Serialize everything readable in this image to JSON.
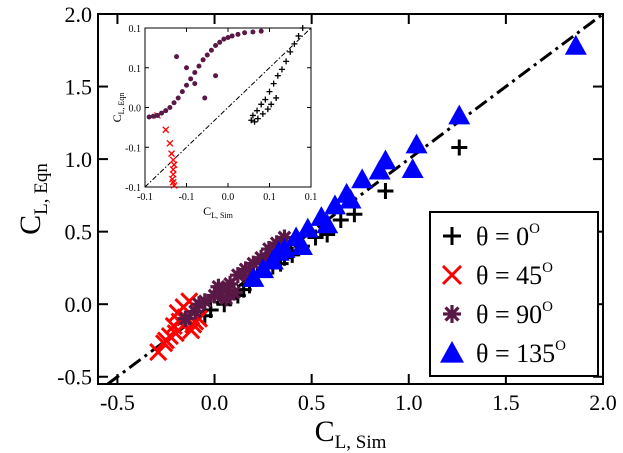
{
  "chart_data": [
    {
      "id": "main",
      "type": "scatter",
      "title": "",
      "xlabel": {
        "main": "C",
        "sub": "L, Sim"
      },
      "ylabel": {
        "main": "C",
        "sub": "L, Eqn"
      },
      "xlim": [
        -0.6,
        2.0
      ],
      "ylim": [
        -0.55,
        2.0
      ],
      "xticks": [
        -0.5,
        0.0,
        0.5,
        1.0,
        1.5,
        2.0
      ],
      "xtick_labels": [
        "-0.5",
        "0.0",
        "0.5",
        "1.0",
        "1.5",
        "2.0"
      ],
      "yticks": [
        -0.5,
        0.0,
        0.5,
        1.0,
        1.5,
        2.0
      ],
      "ytick_labels": [
        "-0.5",
        "0.0",
        "0.5",
        "1.0",
        "1.5",
        "2.0"
      ],
      "reference_line": {
        "style": "dash-dot",
        "x": [
          -0.55,
          2.0
        ],
        "y": [
          -0.55,
          2.0
        ]
      },
      "legend_position": "center-right",
      "series": [
        {
          "name": "θ = 0°",
          "legend_label": "θ = 0",
          "legend_sup": "O",
          "marker": "plus",
          "color": "#000000",
          "x": [
            1.26,
            0.88,
            0.58,
            0.72,
            0.45,
            0.3,
            0.15,
            0.05,
            -0.02,
            0.08,
            0.22,
            0.36,
            0.52,
            0.4,
            0.12,
            -0.05,
            0.18,
            0.65,
            0.34
          ],
          "y": [
            1.08,
            0.78,
            0.48,
            0.62,
            0.4,
            0.26,
            0.1,
            0.0,
            -0.04,
            0.04,
            0.2,
            0.32,
            0.46,
            0.34,
            0.06,
            -0.08,
            0.13,
            0.58,
            0.28
          ]
        },
        {
          "name": "θ = 45°",
          "legend_label": "θ = 45",
          "legend_sup": "O",
          "marker": "x",
          "color": "#ff0000",
          "x": [
            -0.29,
            -0.26,
            -0.23,
            -0.21,
            -0.18,
            -0.15,
            -0.12,
            -0.1,
            -0.2,
            -0.16,
            -0.13,
            -0.25,
            -0.08,
            -0.11,
            -0.19
          ],
          "y": [
            -0.33,
            -0.27,
            -0.22,
            -0.15,
            -0.12,
            -0.09,
            -0.18,
            -0.12,
            -0.2,
            -0.02,
            0.02,
            -0.25,
            -0.1,
            -0.14,
            -0.06
          ]
        },
        {
          "name": "θ = 90°",
          "legend_label": "θ = 90",
          "legend_sup": "O",
          "marker": "star",
          "color": "#5a1846",
          "x": [
            -0.15,
            -0.1,
            -0.05,
            0.0,
            0.04,
            0.08,
            0.12,
            0.16,
            0.2,
            0.24,
            0.28,
            0.32,
            0.36,
            -0.08,
            0.02,
            0.1,
            0.18,
            0.26,
            0.3,
            0.06
          ],
          "y": [
            -0.1,
            -0.05,
            0.02,
            0.06,
            0.1,
            0.14,
            0.2,
            0.24,
            0.28,
            0.32,
            0.38,
            0.42,
            0.46,
            0.0,
            0.12,
            0.08,
            0.18,
            0.3,
            0.34,
            0.04
          ]
        },
        {
          "name": "θ = 135°",
          "legend_label": "θ = 135",
          "legend_sup": "O",
          "marker": "triangle",
          "color": "#0000ff",
          "x": [
            1.86,
            1.26,
            1.04,
            1.02,
            0.88,
            0.85,
            0.76,
            0.68,
            0.62,
            0.55,
            0.48,
            0.42,
            0.36,
            0.3,
            0.25,
            0.2,
            0.45,
            0.58,
            0.7,
            0.33
          ],
          "y": [
            1.78,
            1.3,
            1.1,
            0.93,
            0.99,
            0.92,
            0.86,
            0.76,
            0.68,
            0.6,
            0.52,
            0.46,
            0.38,
            0.3,
            0.24,
            0.18,
            0.4,
            0.55,
            0.72,
            0.36
          ]
        }
      ]
    },
    {
      "id": "inset",
      "type": "scatter",
      "title": "",
      "xlabel": {
        "main": "C",
        "sub": "L, Sim"
      },
      "ylabel": {
        "main": "C",
        "sub": "L, Eqn"
      },
      "xlim": [
        -0.1,
        0.1
      ],
      "ylim": [
        -0.1,
        0.1
      ],
      "xtick_labels": [
        "-0.1",
        "-0.1",
        "0.0",
        "0.1",
        "0.1"
      ],
      "ytick_labels": [
        "0.1",
        "0.1",
        "0.0",
        "-0.1",
        "-0.1"
      ],
      "reference_line": {
        "style": "dash-dot"
      },
      "series": [
        {
          "name": "θ = 0°",
          "marker": "plus",
          "color": "#000000",
          "x": [
            0.085,
            0.08,
            0.075,
            0.07,
            0.065,
            0.06,
            0.055,
            0.05,
            0.045,
            0.04,
            0.035,
            0.03,
            0.028,
            0.032,
            0.036,
            0.042,
            0.048,
            0.052,
            0.058,
            0.09
          ],
          "y": [
            0.09,
            0.08,
            0.07,
            0.058,
            0.048,
            0.04,
            0.03,
            0.02,
            0.01,
            0.004,
            -0.004,
            -0.01,
            -0.016,
            -0.018,
            -0.014,
            -0.008,
            -0.002,
            0.004,
            0.012,
            0.1
          ]
        },
        {
          "name": "θ = 45°",
          "marker": "x",
          "color": "#ff0000",
          "x": [
            -0.085,
            -0.075,
            -0.07,
            -0.068,
            -0.066,
            -0.065,
            -0.066,
            -0.066,
            -0.067,
            -0.066,
            -0.065
          ],
          "y": [
            -0.01,
            -0.028,
            -0.045,
            -0.058,
            -0.066,
            -0.072,
            -0.078,
            -0.084,
            -0.09,
            -0.094,
            -0.098
          ]
        },
        {
          "name": "θ = 90°",
          "marker": "dot",
          "color": "#5a1846",
          "x": [
            -0.095,
            -0.09,
            -0.085,
            -0.08,
            -0.075,
            -0.07,
            -0.065,
            -0.06,
            -0.055,
            -0.05,
            -0.045,
            -0.04,
            -0.035,
            -0.03,
            -0.025,
            -0.02,
            -0.015,
            -0.01,
            -0.005,
            0.0,
            0.005,
            0.012,
            0.02,
            0.03,
            0.04,
            -0.062,
            -0.05,
            -0.04,
            -0.028,
            -0.015
          ],
          "y": [
            -0.012,
            -0.011,
            -0.01,
            -0.007,
            -0.004,
            0.0,
            0.006,
            0.012,
            0.02,
            0.028,
            0.036,
            0.044,
            0.052,
            0.06,
            0.066,
            0.072,
            0.078,
            0.082,
            0.086,
            0.088,
            0.09,
            0.092,
            0.094,
            0.095,
            0.096,
            0.064,
            0.05,
            0.03,
            0.012,
            0.04
          ]
        }
      ]
    }
  ]
}
